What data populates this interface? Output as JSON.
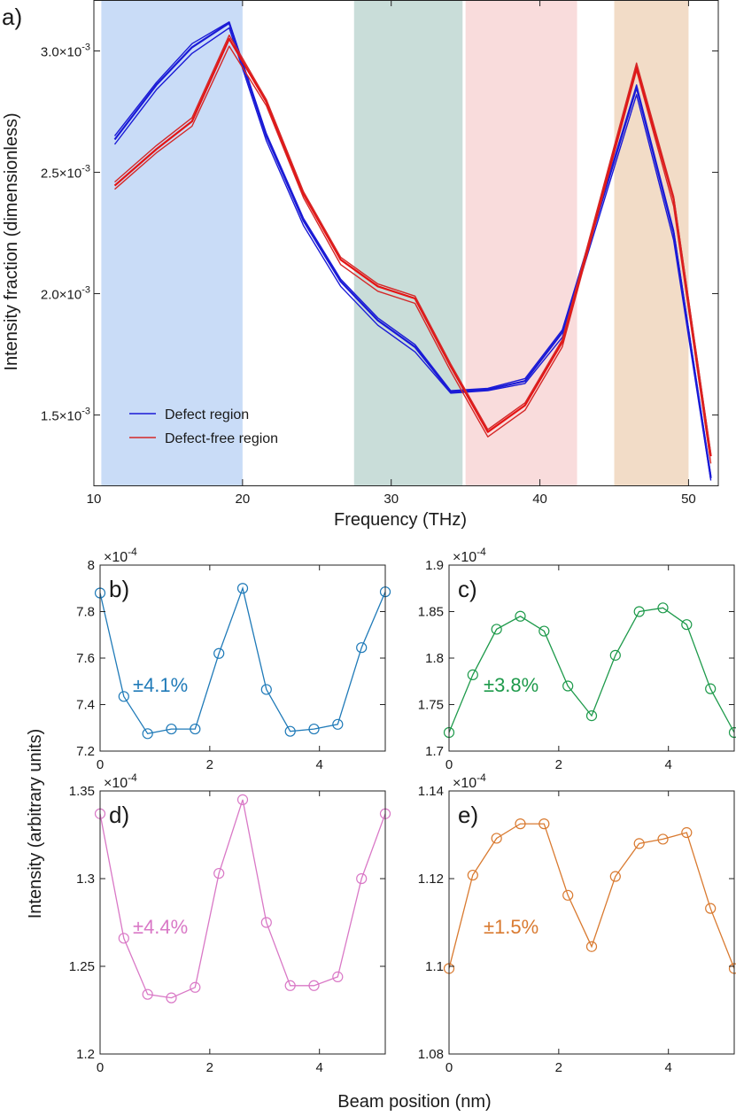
{
  "figure": {
    "shared_ylabel": "Intensity (arbitrary units)",
    "shared_xlabel": "Beam position (nm)"
  },
  "chart_data": [
    {
      "panel": "a)",
      "type": "line",
      "xlabel": "Frequency (THz)",
      "ylabel": "Intensity fraction (dimensionless)",
      "xlim": [
        10,
        52
      ],
      "ylim": [
        0.00121,
        0.00321
      ],
      "xticks": [
        10,
        20,
        30,
        40,
        50
      ],
      "xtick_labels": [
        "10",
        "20",
        "30",
        "40",
        "50"
      ],
      "yticks": [
        0.0015,
        0.002,
        0.0025,
        0.003
      ],
      "ytick_labels": [
        "1.5×10",
        "2.0×10",
        "2.5×10",
        "3.0×10"
      ],
      "ytick_exponent": "-3",
      "legend": {
        "position": "bottom-left",
        "entries": [
          "Defect region",
          "Defect-free region"
        ]
      },
      "bands": [
        {
          "x": [
            10.5,
            20.0
          ],
          "color": "#c9dcf7",
          "label": "b"
        },
        {
          "x": [
            27.5,
            34.8
          ],
          "color": "#c9ddd9",
          "label": "c"
        },
        {
          "x": [
            35.0,
            42.5
          ],
          "color": "#f9dcdc",
          "label": "d"
        },
        {
          "x": [
            45.0,
            50.0
          ],
          "color": "#f2dcc7",
          "label": "e"
        }
      ],
      "x": [
        11.4,
        14.2,
        16.6,
        19.1,
        21.6,
        24.1,
        26.6,
        29.1,
        31.6,
        34.0,
        36.5,
        39.0,
        41.5,
        46.5,
        49.0,
        51.5
      ],
      "series": [
        {
          "name": "Defect region",
          "color": "#1a1ad6",
          "width": 2.2,
          "values": [
            0.002635,
            0.00286,
            0.003015,
            0.003115,
            0.00265,
            0.0023,
            0.00205,
            0.00189,
            0.00178,
            0.001595,
            0.001605,
            0.00164,
            0.00184,
            0.00285,
            0.00225,
            0.00124
          ]
        },
        {
          "name": "Defect region",
          "color": "#1a1ad6",
          "width": 1.4,
          "values": [
            0.002615,
            0.00284,
            0.00299,
            0.003095,
            0.00263,
            0.00228,
            0.00203,
            0.00187,
            0.00176,
            0.00159,
            0.0016,
            0.00163,
            0.00182,
            0.00282,
            0.00222,
            0.00123
          ]
        },
        {
          "name": "Defect region",
          "color": "#1a1ad6",
          "width": 1.4,
          "values": [
            0.00265,
            0.00287,
            0.00303,
            0.00312,
            0.00266,
            0.00231,
            0.00206,
            0.0019,
            0.00179,
            0.0016,
            0.00161,
            0.00165,
            0.00185,
            0.00286,
            0.00226,
            0.00125
          ]
        },
        {
          "name": "Defect-free region",
          "color": "#d42828",
          "width": 1.4,
          "values": [
            0.00243,
            0.00258,
            0.00269,
            0.00302,
            0.002775,
            0.002395,
            0.00212,
            0.00201,
            0.00196,
            0.00168,
            0.00141,
            0.00152,
            0.00178,
            0.00292,
            0.00236,
            0.0013
          ]
        },
        {
          "name": "Defect-free region",
          "color": "#e51414",
          "width": 2.2,
          "values": [
            0.002445,
            0.002595,
            0.00271,
            0.00305,
            0.00279,
            0.00241,
            0.00214,
            0.00203,
            0.00198,
            0.0017,
            0.00143,
            0.00154,
            0.0018,
            0.002935,
            0.00239,
            0.00133
          ]
        },
        {
          "name": "Defect-free region",
          "color": "#d42828",
          "width": 1.4,
          "values": [
            0.00246,
            0.00261,
            0.002725,
            0.003065,
            0.0028,
            0.00242,
            0.00215,
            0.00204,
            0.00199,
            0.00171,
            0.00144,
            0.00155,
            0.00181,
            0.00295,
            0.0024,
            0.00134
          ]
        }
      ]
    },
    {
      "panel": "b)",
      "type": "line",
      "color": "#1f7ab8",
      "annotation": "±4.1%",
      "xlim": [
        0,
        5.2
      ],
      "ylim": [
        7.2,
        8.0
      ],
      "exponent": "-4",
      "xticks": [
        0,
        2,
        4
      ],
      "xtick_labels": [
        "0",
        "2",
        "4"
      ],
      "yticks": [
        7.2,
        7.4,
        7.6,
        7.8,
        8.0
      ],
      "ytick_labels": [
        "7.2",
        "7.4",
        "7.6",
        "7.8",
        "8"
      ],
      "x": [
        0,
        0.433,
        0.867,
        1.3,
        1.733,
        2.167,
        2.6,
        3.033,
        3.467,
        3.9,
        4.333,
        4.767,
        5.2
      ],
      "values": [
        7.88,
        7.435,
        7.275,
        7.295,
        7.295,
        7.62,
        7.9,
        7.465,
        7.285,
        7.295,
        7.315,
        7.645,
        7.885
      ]
    },
    {
      "panel": "c)",
      "type": "line",
      "color": "#1e9a4b",
      "annotation": "±3.8%",
      "xlim": [
        0,
        5.2
      ],
      "ylim": [
        1.7,
        1.9
      ],
      "exponent": "-4",
      "xticks": [
        0,
        2,
        4
      ],
      "xtick_labels": [
        "0",
        "2",
        "4"
      ],
      "yticks": [
        1.7,
        1.75,
        1.8,
        1.85,
        1.9
      ],
      "ytick_labels": [
        "1.7",
        "1.75",
        "1.8",
        "1.85",
        "1.9"
      ],
      "x": [
        0,
        0.433,
        0.867,
        1.3,
        1.733,
        2.167,
        2.6,
        3.033,
        3.467,
        3.9,
        4.333,
        4.767,
        5.2
      ],
      "values": [
        1.72,
        1.782,
        1.831,
        1.845,
        1.829,
        1.77,
        1.738,
        1.803,
        1.85,
        1.854,
        1.836,
        1.767,
        1.72
      ]
    },
    {
      "panel": "d)",
      "type": "line",
      "color": "#d978c6",
      "annotation": "±4.4%",
      "xlim": [
        0,
        5.2
      ],
      "ylim": [
        1.2,
        1.35
      ],
      "exponent": "-4",
      "xticks": [
        0,
        2,
        4
      ],
      "xtick_labels": [
        "0",
        "2",
        "4"
      ],
      "yticks": [
        1.2,
        1.25,
        1.3,
        1.35
      ],
      "ytick_labels": [
        "1.2",
        "1.25",
        "1.3",
        "1.35"
      ],
      "x": [
        0,
        0.433,
        0.867,
        1.3,
        1.733,
        2.167,
        2.6,
        3.033,
        3.467,
        3.9,
        4.333,
        4.767,
        5.2
      ],
      "values": [
        1.337,
        1.266,
        1.234,
        1.232,
        1.238,
        1.303,
        1.345,
        1.275,
        1.239,
        1.239,
        1.244,
        1.3,
        1.337
      ]
    },
    {
      "panel": "e)",
      "type": "line",
      "color": "#d97a30",
      "annotation": "±1.5%",
      "xlim": [
        0,
        5.2
      ],
      "ylim": [
        1.08,
        1.14
      ],
      "exponent": "-4",
      "xticks": [
        0,
        2,
        4
      ],
      "xtick_labels": [
        "0",
        "2",
        "4"
      ],
      "yticks": [
        1.08,
        1.1,
        1.12,
        1.14
      ],
      "ytick_labels": [
        "1.08",
        "1.1",
        "1.12",
        "1.14"
      ],
      "x": [
        0,
        0.433,
        0.867,
        1.3,
        1.733,
        2.167,
        2.6,
        3.033,
        3.467,
        3.9,
        4.333,
        4.767,
        5.2
      ],
      "values": [
        1.0995,
        1.1208,
        1.1292,
        1.1325,
        1.1325,
        1.1162,
        1.1045,
        1.1205,
        1.128,
        1.129,
        1.1305,
        1.1132,
        1.0995
      ]
    }
  ]
}
